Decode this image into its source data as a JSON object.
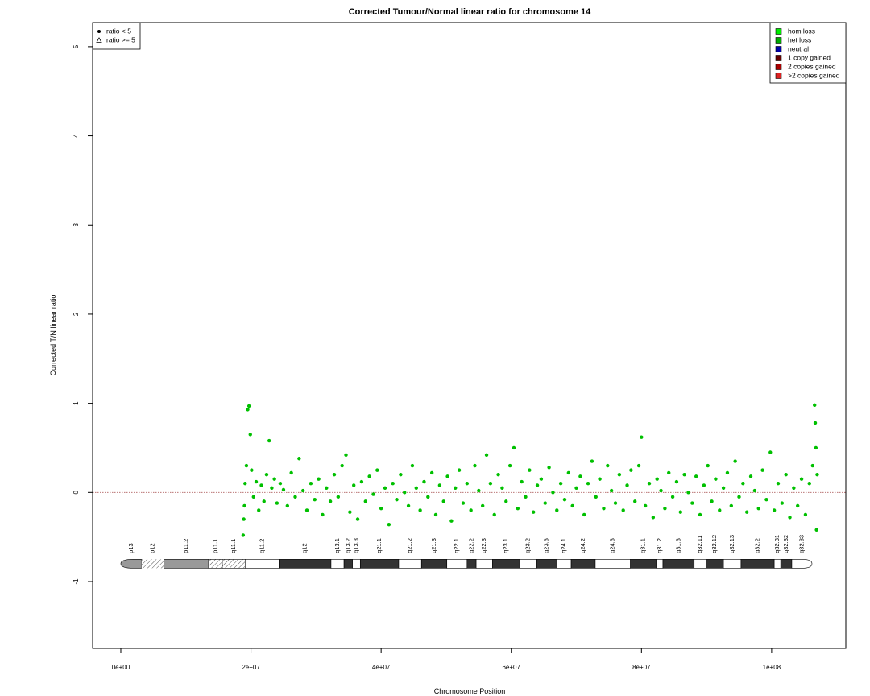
{
  "chart_data": {
    "type": "scatter",
    "title": "Corrected Tumour/Normal linear ratio for chromosome  14",
    "x_label": "Chromosome Position",
    "y_label": "Corrected T/N linear ratio",
    "xlim": [
      -4330000.0,
      111400000.0
    ],
    "ylim": [
      -1.75,
      5.27
    ],
    "xticks": [
      {
        "value": 0,
        "label": "0e+00"
      },
      {
        "value": 20000000.0,
        "label": "2e+07"
      },
      {
        "value": 40000000.0,
        "label": "4e+07"
      },
      {
        "value": 60000000.0,
        "label": "6e+07"
      },
      {
        "value": 80000000.0,
        "label": "8e+07"
      },
      {
        "value": 100000000.0,
        "label": "1e+08"
      }
    ],
    "yticks": [
      -1,
      0,
      1,
      2,
      3,
      4,
      5
    ],
    "reference_line": 0,
    "reference_line_color": "#b06060",
    "point_color": "#00c000",
    "symbol_legend": [
      {
        "label": "ratio < 5",
        "symbol": "circle"
      },
      {
        "label": "ratio >= 5",
        "symbol": "triangle"
      }
    ],
    "legend": [
      {
        "label": "hom loss",
        "color": "#00ee00"
      },
      {
        "label": "het loss",
        "color": "#00aa00"
      },
      {
        "label": "neutral",
        "color": "#0000aa"
      },
      {
        "label": "1 copy gained",
        "color": "#660000"
      },
      {
        "label": "2 copies gained",
        "color": "#aa0000"
      },
      {
        "label": ">2 copies gained",
        "color": "#dd2222"
      }
    ],
    "legend_position": "top-right",
    "symbol_legend_position": "top-left",
    "x": [
      18800000.0,
      18900000.0,
      19000000.0,
      19100000.0,
      19300000.0,
      19500000.0,
      19700000.0,
      19900000.0,
      20100000.0,
      20400000.0,
      20800000.0,
      21200000.0,
      21600000.0,
      22000000.0,
      22400000.0,
      22800000.0,
      23200000.0,
      23600000.0,
      24000000.0,
      24500000.0,
      25000000.0,
      25600000.0,
      26200000.0,
      26800000.0,
      27400000.0,
      28000000.0,
      28600000.0,
      29200000.0,
      29800000.0,
      30400000.0,
      31000000.0,
      31600000.0,
      32200000.0,
      32800000.0,
      33400000.0,
      34000000.0,
      34600000.0,
      35200000.0,
      35800000.0,
      36400000.0,
      37000000.0,
      37600000.0,
      38200000.0,
      38800000.0,
      39400000.0,
      40000000.0,
      40600000.0,
      41200000.0,
      41800000.0,
      42400000.0,
      43000000.0,
      43600000.0,
      44200000.0,
      44800000.0,
      45400000.0,
      46000000.0,
      46600000.0,
      47200000.0,
      47800000.0,
      48400000.0,
      49000000.0,
      49600000.0,
      50200000.0,
      50800000.0,
      51400000.0,
      52000000.0,
      52600000.0,
      53200000.0,
      53800000.0,
      54400000.0,
      55000000.0,
      55600000.0,
      56200000.0,
      56800000.0,
      57400000.0,
      58000000.0,
      58600000.0,
      59200000.0,
      59800000.0,
      60400000.0,
      61000000.0,
      61600000.0,
      62200000.0,
      62800000.0,
      63400000.0,
      64000000.0,
      64600000.0,
      65200000.0,
      65800000.0,
      66400000.0,
      67000000.0,
      67600000.0,
      68200000.0,
      68800000.0,
      69400000.0,
      70000000.0,
      70600000.0,
      71200000.0,
      71800000.0,
      72400000.0,
      73000000.0,
      73600000.0,
      74200000.0,
      74800000.0,
      75400000.0,
      76000000.0,
      76600000.0,
      77200000.0,
      77800000.0,
      78400000.0,
      79000000.0,
      79600000.0,
      80000000.0,
      80600000.0,
      81200000.0,
      81800000.0,
      82400000.0,
      83000000.0,
      83600000.0,
      84200000.0,
      84800000.0,
      85400000.0,
      86000000.0,
      86600000.0,
      87200000.0,
      87800000.0,
      88400000.0,
      89000000.0,
      89600000.0,
      90200000.0,
      90800000.0,
      91400000.0,
      92000000.0,
      92600000.0,
      93200000.0,
      93800000.0,
      94400000.0,
      95000000.0,
      95600000.0,
      96200000.0,
      96800000.0,
      97400000.0,
      98000000.0,
      98600000.0,
      99200000.0,
      99800000.0,
      100400000.0,
      101000000.0,
      101600000.0,
      102200000.0,
      102800000.0,
      103400000.0,
      104000000.0,
      104600000.0,
      105200000.0,
      105800000.0,
      106300000.0,
      106600000.0,
      106700000.0,
      106800000.0,
      106900000.0,
      107000000.0
    ],
    "y": [
      -0.48,
      -0.3,
      -0.15,
      0.1,
      0.3,
      0.93,
      0.97,
      0.65,
      0.25,
      -0.05,
      0.12,
      -0.2,
      0.08,
      -0.1,
      0.2,
      0.58,
      0.05,
      0.15,
      -0.12,
      0.1,
      0.03,
      -0.15,
      0.22,
      -0.05,
      0.38,
      0.02,
      -0.2,
      0.1,
      -0.08,
      0.15,
      -0.25,
      0.05,
      -0.1,
      0.2,
      -0.05,
      0.3,
      0.42,
      -0.22,
      0.08,
      -0.3,
      0.12,
      -0.1,
      0.18,
      -0.02,
      0.25,
      -0.18,
      0.05,
      -0.36,
      0.1,
      -0.08,
      0.2,
      0,
      -0.15,
      0.3,
      0.05,
      -0.2,
      0.12,
      -0.05,
      0.22,
      -0.25,
      0.08,
      -0.1,
      0.18,
      -0.32,
      0.05,
      0.25,
      -0.12,
      0.1,
      -0.2,
      0.3,
      0.02,
      -0.15,
      0.42,
      0.1,
      -0.25,
      0.2,
      0.05,
      -0.1,
      0.3,
      0.5,
      -0.18,
      0.12,
      -0.05,
      0.25,
      -0.22,
      0.08,
      0.15,
      -0.12,
      0.28,
      0,
      -0.2,
      0.1,
      -0.08,
      0.22,
      -0.15,
      0.05,
      0.18,
      -0.25,
      0.1,
      0.35,
      -0.05,
      0.15,
      -0.18,
      0.3,
      0.02,
      -0.12,
      0.2,
      -0.2,
      0.08,
      0.25,
      -0.1,
      0.3,
      0.62,
      -0.15,
      0.1,
      -0.28,
      0.15,
      0.02,
      -0.18,
      0.22,
      -0.05,
      0.12,
      -0.22,
      0.2,
      0,
      -0.12,
      0.18,
      -0.25,
      0.08,
      0.3,
      -0.1,
      0.15,
      -0.2,
      0.05,
      0.22,
      -0.15,
      0.35,
      -0.05,
      0.1,
      -0.22,
      0.18,
      0.02,
      -0.18,
      0.25,
      -0.08,
      0.45,
      -0.2,
      0.1,
      -0.12,
      0.2,
      -0.28,
      0.05,
      -0.15,
      0.15,
      -0.25,
      0.1,
      0.3,
      0.98,
      0.78,
      0.5,
      -0.42,
      0.2
    ],
    "ideogram_y": -0.8,
    "bands": [
      {
        "label": "p13",
        "start": 0,
        "end": 3200000.0,
        "stain": "gvar"
      },
      {
        "label": "p12",
        "start": 3200000.0,
        "end": 6600000.0,
        "stain": "stalk"
      },
      {
        "label": "p11.2",
        "start": 6600000.0,
        "end": 13500000.0,
        "stain": "gpos50"
      },
      {
        "label": "p11.1",
        "start": 13500000.0,
        "end": 15600000.0,
        "stain": "acen"
      },
      {
        "label": "q11.1",
        "start": 15600000.0,
        "end": 19100000.0,
        "stain": "acen"
      },
      {
        "label": "q11.2",
        "start": 19100000.0,
        "end": 24300000.0,
        "stain": "gneg"
      },
      {
        "label": "q12",
        "start": 24300000.0,
        "end": 32300000.0,
        "stain": "gpos100"
      },
      {
        "label": "q13.1",
        "start": 32300000.0,
        "end": 34300000.0,
        "stain": "gneg"
      },
      {
        "label": "q13.2",
        "start": 34300000.0,
        "end": 35600000.0,
        "stain": "gpos100"
      },
      {
        "label": "q13.3",
        "start": 35600000.0,
        "end": 36800000.0,
        "stain": "gneg"
      },
      {
        "label": "q21.1",
        "start": 36800000.0,
        "end": 42700000.0,
        "stain": "gpos100"
      },
      {
        "label": "q21.2",
        "start": 42700000.0,
        "end": 46200000.0,
        "stain": "gneg"
      },
      {
        "label": "q21.3",
        "start": 46200000.0,
        "end": 50100000.0,
        "stain": "gpos100"
      },
      {
        "label": "q22.1",
        "start": 50100000.0,
        "end": 53200000.0,
        "stain": "gneg"
      },
      {
        "label": "q22.2",
        "start": 53200000.0,
        "end": 54600000.0,
        "stain": "gpos100"
      },
      {
        "label": "q22.3",
        "start": 54600000.0,
        "end": 57100000.0,
        "stain": "gneg"
      },
      {
        "label": "q23.1",
        "start": 57100000.0,
        "end": 61300000.0,
        "stain": "gpos100"
      },
      {
        "label": "q23.2",
        "start": 61300000.0,
        "end": 63900000.0,
        "stain": "gneg"
      },
      {
        "label": "q23.3",
        "start": 63900000.0,
        "end": 67000000.0,
        "stain": "gpos100"
      },
      {
        "label": "q24.1",
        "start": 67000000.0,
        "end": 69200000.0,
        "stain": "gneg"
      },
      {
        "label": "q24.2",
        "start": 69200000.0,
        "end": 72900000.0,
        "stain": "gpos100"
      },
      {
        "label": "q24.3",
        "start": 72900000.0,
        "end": 78300000.0,
        "stain": "gneg"
      },
      {
        "label": "q31.1",
        "start": 78300000.0,
        "end": 82300000.0,
        "stain": "gpos100"
      },
      {
        "label": "q31.2",
        "start": 82300000.0,
        "end": 83300000.0,
        "stain": "gneg"
      },
      {
        "label": "q31.3",
        "start": 83300000.0,
        "end": 88100000.0,
        "stain": "gpos100"
      },
      {
        "label": "q32.11",
        "start": 88100000.0,
        "end": 89900000.0,
        "stain": "gneg"
      },
      {
        "label": "q32.12",
        "start": 89900000.0,
        "end": 92600000.0,
        "stain": "gpos100"
      },
      {
        "label": "q32.13",
        "start": 92600000.0,
        "end": 95300000.0,
        "stain": "gneg"
      },
      {
        "label": "q32.2",
        "start": 95300000.0,
        "end": 100400000.0,
        "stain": "gpos100"
      },
      {
        "label": "q32.31",
        "start": 100400000.0,
        "end": 101400000.0,
        "stain": "gneg"
      },
      {
        "label": "q32.32",
        "start": 101400000.0,
        "end": 103100000.0,
        "stain": "gpos100"
      },
      {
        "label": "q32.33",
        "start": 103100000.0,
        "end": 106200000.0,
        "stain": "gneg"
      }
    ]
  }
}
